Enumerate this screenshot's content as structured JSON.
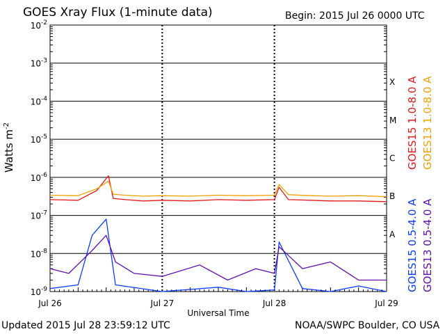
{
  "header": {
    "title": "GOES Xray Flux (1-minute data)",
    "begin": "Begin:  2015 Jul 26 0000 UTC"
  },
  "footer": {
    "updated": "Updated 2015 Jul 28 23:59:12 UTC",
    "credit": "NOAA/SWPC Boulder, CO USA"
  },
  "colors": {
    "goes15_long": "#e01818",
    "goes13_long": "#f0a000",
    "goes15_short": "#0a3cff",
    "goes13_short": "#6010b0"
  },
  "chart_data": {
    "type": "line",
    "title": "GOES Xray Flux (1-minute data)",
    "xlabel": "Universal Time",
    "ylabel": "Watts m",
    "ylabel_sup": "-2",
    "y_scale": "log",
    "ylim": [
      1e-09,
      0.01
    ],
    "y_ticks": [
      {
        "base": "10",
        "exp": "-9"
      },
      {
        "base": "10",
        "exp": "-8"
      },
      {
        "base": "10",
        "exp": "-7"
      },
      {
        "base": "10",
        "exp": "-6"
      },
      {
        "base": "10",
        "exp": "-5"
      },
      {
        "base": "10",
        "exp": "-4"
      },
      {
        "base": "10",
        "exp": "-3"
      },
      {
        "base": "10",
        "exp": "-2"
      }
    ],
    "xlim": [
      "2015-07-26",
      "2015-07-29"
    ],
    "x_ticks": [
      "Jul 26",
      "Jul 27",
      "Jul 28",
      "Jul 29"
    ],
    "flare_classes": [
      {
        "label": "A",
        "flux": 1e-08
      },
      {
        "label": "B",
        "flux": 1e-07
      },
      {
        "label": "C",
        "flux": 1e-06
      },
      {
        "label": "M",
        "flux": 1e-05
      },
      {
        "label": "X",
        "flux": 0.0001
      }
    ],
    "grid": true,
    "legend_placement": "right",
    "series": [
      {
        "name": "GOES15 1.0-8.0 A",
        "color": "#e01818",
        "x": [
          "2015-07-26 00:00",
          "2015-07-26 06:00",
          "2015-07-26 10:00",
          "2015-07-26 12:30",
          "2015-07-26 13:30",
          "2015-07-26 16:00",
          "2015-07-26 20:00",
          "2015-07-27 00:00",
          "2015-07-27 06:00",
          "2015-07-27 12:00",
          "2015-07-27 18:00",
          "2015-07-28 00:00",
          "2015-07-28 01:00",
          "2015-07-28 03:00",
          "2015-07-28 08:00",
          "2015-07-28 12:00",
          "2015-07-28 18:00",
          "2015-07-29 00:00"
        ],
        "y": [
          2.6e-07,
          2.5e-07,
          4.5e-07,
          1.1e-06,
          2.8e-07,
          2.6e-07,
          2.4e-07,
          2.5e-07,
          2.4e-07,
          2.6e-07,
          2.5e-07,
          2.6e-07,
          5.5e-07,
          2.6e-07,
          2.5e-07,
          2.4e-07,
          2.4e-07,
          2.3e-07
        ]
      },
      {
        "name": "GOES13 1.0-8.0 A",
        "color": "#f0a000",
        "x": [
          "2015-07-26 00:00",
          "2015-07-26 06:00",
          "2015-07-26 10:00",
          "2015-07-26 12:30",
          "2015-07-26 13:30",
          "2015-07-26 16:00",
          "2015-07-26 20:00",
          "2015-07-27 00:00",
          "2015-07-27 06:00",
          "2015-07-27 12:00",
          "2015-07-27 18:00",
          "2015-07-28 00:00",
          "2015-07-28 01:00",
          "2015-07-28 03:00",
          "2015-07-28 08:00",
          "2015-07-28 12:00",
          "2015-07-28 18:00",
          "2015-07-29 00:00"
        ],
        "y": [
          3.4e-07,
          3.3e-07,
          5e-07,
          8e-07,
          3.6e-07,
          3.4e-07,
          3.2e-07,
          3.3e-07,
          3.2e-07,
          3.4e-07,
          3.3e-07,
          3.4e-07,
          6.5e-07,
          3.5e-07,
          3.3e-07,
          3.2e-07,
          3.3e-07,
          3.1e-07
        ]
      },
      {
        "name": "GOES15 0.5-4.0 A",
        "color": "#0a3cff",
        "x": [
          "2015-07-26 00:00",
          "2015-07-26 06:00",
          "2015-07-26 09:00",
          "2015-07-26 12:00",
          "2015-07-26 14:00",
          "2015-07-27 00:00",
          "2015-07-27 12:00",
          "2015-07-27 18:00",
          "2015-07-28 00:00",
          "2015-07-28 01:00",
          "2015-07-28 06:00",
          "2015-07-28 12:00",
          "2015-07-28 18:00",
          "2015-07-29 00:00"
        ],
        "y": [
          1.2e-09,
          1.5e-09,
          3e-08,
          8e-08,
          1.5e-09,
          1e-09,
          1.3e-09,
          1e-09,
          1.1e-09,
          2e-08,
          1.2e-09,
          1e-09,
          1.4e-09,
          1e-09
        ]
      },
      {
        "name": "GOES13 0.5-4.0 A",
        "color": "#6010b0",
        "x": [
          "2015-07-26 00:00",
          "2015-07-26 04:00",
          "2015-07-26 09:00",
          "2015-07-26 12:00",
          "2015-07-26 14:00",
          "2015-07-26 18:00",
          "2015-07-27 00:00",
          "2015-07-27 08:00",
          "2015-07-27 14:00",
          "2015-07-27 20:00",
          "2015-07-28 00:00",
          "2015-07-28 01:00",
          "2015-07-28 06:00",
          "2015-07-28 12:00",
          "2015-07-28 18:00",
          "2015-07-29 00:00"
        ],
        "y": [
          4e-09,
          3e-09,
          1.2e-08,
          3e-08,
          6e-09,
          3e-09,
          2.5e-09,
          5e-09,
          2e-09,
          4e-09,
          3e-09,
          1.5e-08,
          4e-09,
          6e-09,
          2e-09,
          2e-09
        ]
      }
    ]
  }
}
